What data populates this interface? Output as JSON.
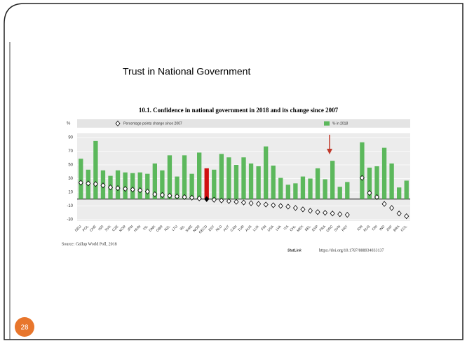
{
  "slide": {
    "title": "Trust in National Government",
    "page_number": "28"
  },
  "chart_data": {
    "type": "bar",
    "title": "10.1. Confidence in national government in 2018 and its change since 2007",
    "y_label": "%",
    "source": "Source: Gallup World Poll, 2018",
    "statlink": "StatLink",
    "link": "https://doi.org/10.1787/888934033137",
    "categories": [
      "DEU",
      "POL",
      "CHE",
      "ISR",
      "SVK",
      "CZE",
      "KOR",
      "JPN",
      "HUN",
      "ISL",
      "DNK",
      "GBR",
      "NZL",
      "LTU",
      "IRL",
      "SWE",
      "NOR",
      "OECD",
      "EST",
      "NLD",
      "AUT",
      "CAN",
      "TUR",
      "AUS",
      "LUX",
      "FIN",
      "USA",
      "LVA",
      "ITA",
      "CHL",
      "MEX",
      "BEL",
      "ESP",
      "FRA",
      "GRC",
      "SVN",
      "PRT",
      null,
      "IDN",
      "RUS",
      "CRI",
      "IND",
      "ZAF",
      "BRA",
      "COL"
    ],
    "series": [
      {
        "name": "% in 2018",
        "color": "#5cb85c",
        "colors": [
          "#5cb85c",
          "#5cb85c",
          "#5cb85c",
          "#5cb85c",
          "#5cb85c",
          "#5cb85c",
          "#5cb85c",
          "#5cb85c",
          "#5cb85c",
          "#5cb85c",
          "#5cb85c",
          "#5cb85c",
          "#5cb85c",
          "#5cb85c",
          "#5cb85c",
          "#5cb85c",
          "#5cb85c",
          "#d01010",
          "#5cb85c",
          "#5cb85c",
          "#5cb85c",
          "#5cb85c",
          "#5cb85c",
          "#5cb85c",
          "#5cb85c",
          "#5cb85c",
          "#5cb85c",
          "#5cb85c",
          "#5cb85c",
          "#5cb85c",
          "#5cb85c",
          "#5cb85c",
          "#5cb85c",
          "#5cb85c",
          "#5cb85c",
          "#5cb85c",
          "#5cb85c",
          "#5cb85c",
          "#5cb85c",
          "#5cb85c",
          "#5cb85c",
          "#5cb85c",
          "#5cb85c",
          "#5cb85c",
          "#5cb85c"
        ],
        "values": [
          59,
          43,
          85,
          42,
          34,
          42,
          39,
          38,
          39,
          37,
          52,
          42,
          64,
          33,
          64,
          37,
          68,
          45,
          43,
          66,
          61,
          50,
          61,
          52,
          48,
          77,
          49,
          31,
          21,
          23,
          33,
          30,
          45,
          29,
          56,
          18,
          25,
          null,
          83,
          46,
          48,
          75,
          52,
          17,
          27
        ]
      },
      {
        "name": "Percentage points change since 2007",
        "color": "#ffffff",
        "marker": "diamond",
        "colors": [
          "#ffffff",
          "#ffffff",
          "#ffffff",
          "#ffffff",
          "#ffffff",
          "#ffffff",
          "#ffffff",
          "#ffffff",
          "#ffffff",
          "#ffffff",
          "#ffffff",
          "#ffffff",
          "#ffffff",
          "#ffffff",
          "#ffffff",
          "#ffffff",
          "#ffffff",
          "#000000",
          "#ffffff",
          "#ffffff",
          "#ffffff",
          "#ffffff",
          "#ffffff",
          "#ffffff",
          "#ffffff",
          "#ffffff",
          "#ffffff",
          "#ffffff",
          "#ffffff",
          "#ffffff",
          "#ffffff",
          "#ffffff",
          "#ffffff",
          "#ffffff",
          "#ffffff",
          "#ffffff",
          "#ffffff",
          "#ffffff",
          "#ffffff",
          "#ffffff",
          "#ffffff",
          "#ffffff",
          "#ffffff",
          "#ffffff",
          "#ffffff"
        ],
        "values": [
          24,
          23,
          22,
          20,
          17,
          16,
          15,
          14,
          13,
          11,
          7,
          6,
          5,
          4,
          3,
          2,
          1,
          0,
          -1,
          -2,
          -3,
          -4,
          -5,
          -6,
          -7,
          -8,
          -9,
          -10,
          -11,
          -13,
          -15,
          -17,
          -19,
          -20,
          -21,
          -22,
          -23,
          null,
          31,
          9,
          3,
          -7,
          -13,
          -21,
          -25
        ]
      }
    ],
    "ylim": [
      -30,
      90
    ],
    "yticks": [
      -30,
      -10,
      10,
      30,
      50,
      70,
      90
    ],
    "grid": true
  }
}
